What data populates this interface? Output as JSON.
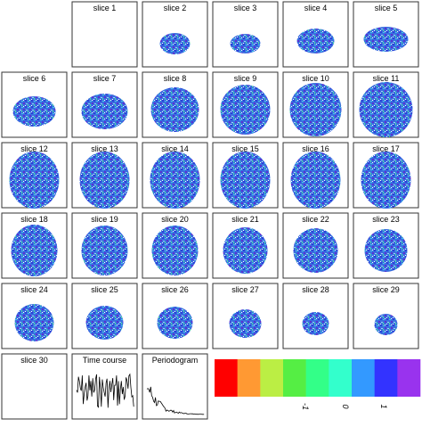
{
  "panels": [
    {
      "label": "slice 1"
    },
    {
      "label": "slice 2"
    },
    {
      "label": "slice 3"
    },
    {
      "label": "slice 4"
    },
    {
      "label": "slice 5"
    },
    {
      "label": "slice 6"
    },
    {
      "label": "slice 7"
    },
    {
      "label": "slice 8"
    },
    {
      "label": "slice 9"
    },
    {
      "label": "slice 10"
    },
    {
      "label": "slice 11"
    },
    {
      "label": "slice 12"
    },
    {
      "label": "slice 13"
    },
    {
      "label": "slice 14"
    },
    {
      "label": "slice 15"
    },
    {
      "label": "slice 16"
    },
    {
      "label": "slice 17"
    },
    {
      "label": "slice 18"
    },
    {
      "label": "slice 19"
    },
    {
      "label": "slice 20"
    },
    {
      "label": "slice 21"
    },
    {
      "label": "slice 22"
    },
    {
      "label": "slice 23"
    },
    {
      "label": "slice 24"
    },
    {
      "label": "slice 25"
    },
    {
      "label": "slice 26"
    },
    {
      "label": "slice 27"
    },
    {
      "label": "slice 28"
    },
    {
      "label": "slice 29"
    },
    {
      "label": "slice 30"
    },
    {
      "label": "Time course"
    },
    {
      "label": "Periodogram"
    }
  ],
  "colorbar": {
    "colors": [
      "#ff0000",
      "#ff9933",
      "#bbee44",
      "#55ee44",
      "#33ff88",
      "#33ffcc",
      "#3399ff",
      "#3333ff",
      "#9933ee"
    ],
    "labels": [
      "-1",
      "0",
      "1"
    ]
  }
}
